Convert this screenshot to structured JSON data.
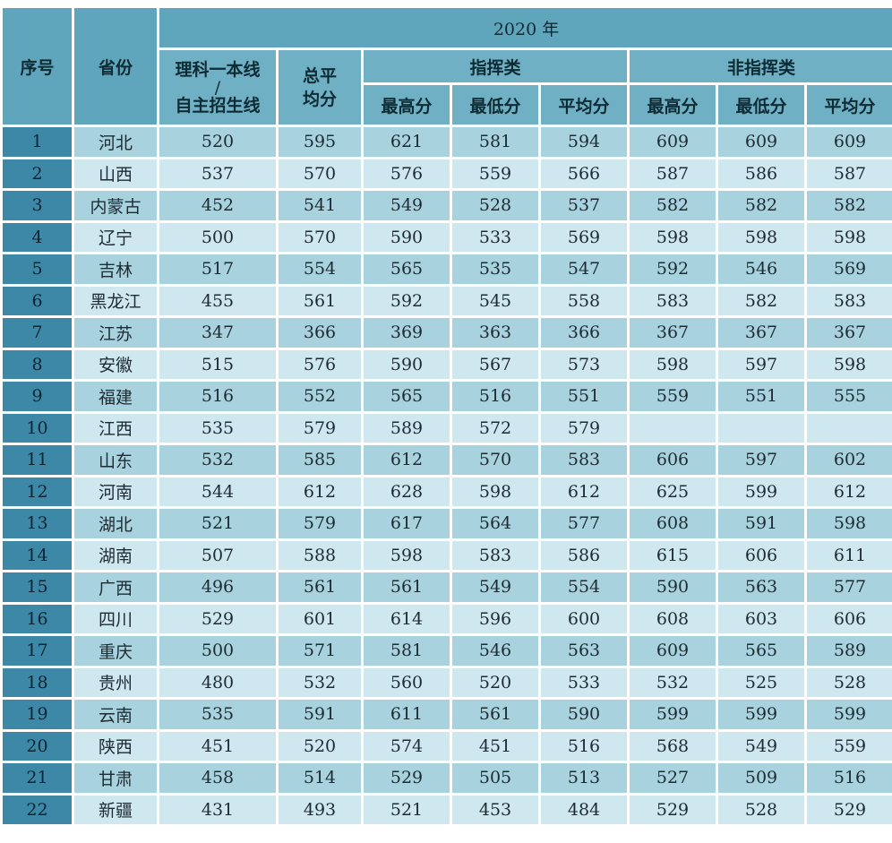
{
  "header": {
    "year_title": "2020 年",
    "col_index": "序号",
    "col_province": "省份",
    "col_line_1": "理科一本线",
    "col_line_sep": "/",
    "col_line_2": "自主招生线",
    "col_total_1": "总平",
    "col_total_2": "均分",
    "group_command": "指挥类",
    "group_noncommand": "非指挥类",
    "max": "最高分",
    "min": "最低分",
    "avg": "平均分"
  },
  "rows": [
    {
      "idx": "1",
      "province": "河北",
      "line": "520",
      "total": "595",
      "c_max": "621",
      "c_min": "581",
      "c_avg": "594",
      "n_max": "609",
      "n_min": "609",
      "n_avg": "609"
    },
    {
      "idx": "2",
      "province": "山西",
      "line": "537",
      "total": "570",
      "c_max": "576",
      "c_min": "559",
      "c_avg": "566",
      "n_max": "587",
      "n_min": "586",
      "n_avg": "587"
    },
    {
      "idx": "3",
      "province": "内蒙古",
      "line": "452",
      "total": "541",
      "c_max": "549",
      "c_min": "528",
      "c_avg": "537",
      "n_max": "582",
      "n_min": "582",
      "n_avg": "582"
    },
    {
      "idx": "4",
      "province": "辽宁",
      "line": "500",
      "total": "570",
      "c_max": "590",
      "c_min": "533",
      "c_avg": "569",
      "n_max": "598",
      "n_min": "598",
      "n_avg": "598"
    },
    {
      "idx": "5",
      "province": "吉林",
      "line": "517",
      "total": "554",
      "c_max": "565",
      "c_min": "535",
      "c_avg": "547",
      "n_max": "592",
      "n_min": "546",
      "n_avg": "569"
    },
    {
      "idx": "6",
      "province": "黑龙江",
      "line": "455",
      "total": "561",
      "c_max": "592",
      "c_min": "545",
      "c_avg": "558",
      "n_max": "583",
      "n_min": "582",
      "n_avg": "583"
    },
    {
      "idx": "7",
      "province": "江苏",
      "line": "347",
      "total": "366",
      "c_max": "369",
      "c_min": "363",
      "c_avg": "366",
      "n_max": "367",
      "n_min": "367",
      "n_avg": "367"
    },
    {
      "idx": "8",
      "province": "安徽",
      "line": "515",
      "total": "576",
      "c_max": "590",
      "c_min": "567",
      "c_avg": "573",
      "n_max": "598",
      "n_min": "597",
      "n_avg": "598"
    },
    {
      "idx": "9",
      "province": "福建",
      "line": "516",
      "total": "552",
      "c_max": "565",
      "c_min": "516",
      "c_avg": "551",
      "n_max": "559",
      "n_min": "551",
      "n_avg": "555"
    },
    {
      "idx": "10",
      "province": "江西",
      "line": "535",
      "total": "579",
      "c_max": "589",
      "c_min": "572",
      "c_avg": "579",
      "n_max": "",
      "n_min": "",
      "n_avg": ""
    },
    {
      "idx": "11",
      "province": "山东",
      "line": "532",
      "total": "585",
      "c_max": "612",
      "c_min": "570",
      "c_avg": "583",
      "n_max": "606",
      "n_min": "597",
      "n_avg": "602"
    },
    {
      "idx": "12",
      "province": "河南",
      "line": "544",
      "total": "612",
      "c_max": "628",
      "c_min": "598",
      "c_avg": "612",
      "n_max": "625",
      "n_min": "599",
      "n_avg": "612"
    },
    {
      "idx": "13",
      "province": "湖北",
      "line": "521",
      "total": "579",
      "c_max": "617",
      "c_min": "564",
      "c_avg": "577",
      "n_max": "608",
      "n_min": "591",
      "n_avg": "598"
    },
    {
      "idx": "14",
      "province": "湖南",
      "line": "507",
      "total": "588",
      "c_max": "598",
      "c_min": "583",
      "c_avg": "586",
      "n_max": "615",
      "n_min": "606",
      "n_avg": "611"
    },
    {
      "idx": "15",
      "province": "广西",
      "line": "496",
      "total": "561",
      "c_max": "561",
      "c_min": "549",
      "c_avg": "554",
      "n_max": "590",
      "n_min": "563",
      "n_avg": "577"
    },
    {
      "idx": "16",
      "province": "四川",
      "line": "529",
      "total": "601",
      "c_max": "614",
      "c_min": "596",
      "c_avg": "600",
      "n_max": "608",
      "n_min": "603",
      "n_avg": "606"
    },
    {
      "idx": "17",
      "province": "重庆",
      "line": "500",
      "total": "571",
      "c_max": "581",
      "c_min": "546",
      "c_avg": "563",
      "n_max": "609",
      "n_min": "565",
      "n_avg": "589"
    },
    {
      "idx": "18",
      "province": "贵州",
      "line": "480",
      "total": "532",
      "c_max": "560",
      "c_min": "520",
      "c_avg": "533",
      "n_max": "532",
      "n_min": "525",
      "n_avg": "528"
    },
    {
      "idx": "19",
      "province": "云南",
      "line": "535",
      "total": "591",
      "c_max": "611",
      "c_min": "561",
      "c_avg": "590",
      "n_max": "599",
      "n_min": "599",
      "n_avg": "599"
    },
    {
      "idx": "20",
      "province": "陕西",
      "line": "451",
      "total": "520",
      "c_max": "574",
      "c_min": "451",
      "c_avg": "516",
      "n_max": "568",
      "n_min": "549",
      "n_avg": "559"
    },
    {
      "idx": "21",
      "province": "甘肃",
      "line": "458",
      "total": "514",
      "c_max": "529",
      "c_min": "505",
      "c_avg": "513",
      "n_max": "527",
      "n_min": "509",
      "n_avg": "516"
    },
    {
      "idx": "22",
      "province": "新疆",
      "line": "431",
      "total": "493",
      "c_max": "521",
      "c_min": "453",
      "c_avg": "484",
      "n_max": "529",
      "n_min": "528",
      "n_avg": "529"
    }
  ],
  "colors": {
    "index_bg": "#3d88a7",
    "header_bg": "#6fb0c4",
    "row_dark": "#a8d2de",
    "row_light": "#cfe7ee"
  }
}
